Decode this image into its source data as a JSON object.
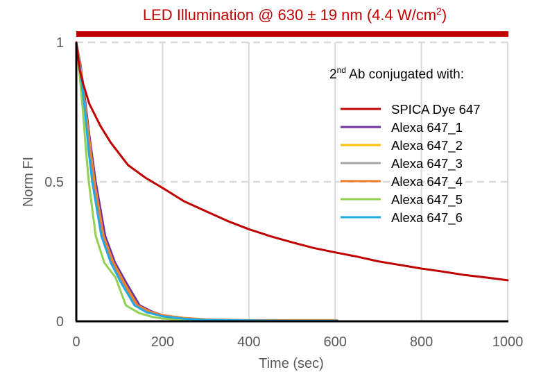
{
  "chart_data": {
    "type": "line",
    "title": "LED Illumination @ 630 ± 19 nm (4.4 W/cm²)",
    "title_parts": {
      "main": "LED Illumination @ 630 ± 19 nm (4.4 W/cm",
      "superscript": "2",
      "end": ")"
    },
    "illumination_bar": {
      "color": "#C00000",
      "x_range": [
        0,
        1000
      ]
    },
    "xlabel": "Time (sec)",
    "ylabel": "Norm FI",
    "xlim": [
      0,
      1000
    ],
    "ylim": [
      0,
      1
    ],
    "xticks": [
      0,
      200,
      400,
      600,
      800,
      1000
    ],
    "xtick_labels": [
      "0",
      "200",
      "400",
      "600",
      "800",
      "1000"
    ],
    "yticks": [
      0,
      0.5,
      1
    ],
    "ytick_labels": [
      "0",
      "0.5",
      "1"
    ],
    "grid": {
      "vertical": true,
      "horizontal_dashed": [
        0.5,
        1
      ]
    },
    "legend": {
      "title_main": "2",
      "title_sup": "nd",
      "title_rest": " Ab conjugated with:",
      "placement": "top-right"
    },
    "series": [
      {
        "name": "SPICA Dye 647",
        "color": "#C00000",
        "x": [
          0,
          8,
          16,
          30,
          56,
          80,
          120,
          160,
          200,
          250,
          300,
          350,
          400,
          450,
          500,
          550,
          600,
          650,
          700,
          750,
          800,
          850,
          900,
          950,
          1000
        ],
        "y": [
          1,
          0.9,
          0.85,
          0.78,
          0.7,
          0.64,
          0.56,
          0.515,
          0.478,
          0.43,
          0.395,
          0.36,
          0.33,
          0.305,
          0.283,
          0.263,
          0.247,
          0.232,
          0.215,
          0.202,
          0.189,
          0.178,
          0.166,
          0.157,
          0.147
        ]
      },
      {
        "name": "Alexa 647_1",
        "color": "#7030A0",
        "x": [
          0,
          10,
          20,
          30,
          45,
          67,
          90,
          117,
          147,
          175,
          200,
          250,
          300,
          400,
          500,
          605
        ],
        "y": [
          1,
          0.92,
          0.8,
          0.67,
          0.5,
          0.306,
          0.21,
          0.135,
          0.057,
          0.035,
          0.022,
          0.012,
          0.006,
          0.003,
          0.002,
          0.002
        ]
      },
      {
        "name": "Alexa 647_2",
        "color": "#FFC000",
        "x": [
          0,
          10,
          20,
          30,
          42,
          63,
          86,
          112,
          142,
          170,
          200,
          250,
          300,
          400,
          500,
          605
        ],
        "y": [
          1,
          0.91,
          0.78,
          0.65,
          0.5,
          0.306,
          0.21,
          0.135,
          0.057,
          0.035,
          0.022,
          0.012,
          0.007,
          0.004,
          0.003,
          0.003
        ]
      },
      {
        "name": "Alexa 647_3",
        "color": "#A5A5A5",
        "x": [
          0,
          10,
          20,
          30,
          41,
          62,
          85,
          110,
          140,
          168,
          200,
          250,
          300,
          400,
          500,
          605
        ],
        "y": [
          1,
          0.9,
          0.77,
          0.64,
          0.5,
          0.306,
          0.21,
          0.135,
          0.057,
          0.034,
          0.021,
          0.011,
          0.006,
          0.003,
          0.002,
          0.002
        ]
      },
      {
        "name": "Alexa 647_4",
        "color": "#ED7D31",
        "x": [
          0,
          10,
          20,
          30,
          41,
          62,
          85,
          111,
          141,
          169,
          200,
          250,
          300,
          400,
          500,
          605
        ],
        "y": [
          1,
          0.9,
          0.77,
          0.64,
          0.5,
          0.306,
          0.21,
          0.135,
          0.057,
          0.035,
          0.022,
          0.012,
          0.007,
          0.004,
          0.004,
          0.004
        ]
      },
      {
        "name": "Alexa 647_5",
        "color": "#92D050",
        "x": [
          0,
          8,
          16,
          22,
          29,
          45,
          65,
          91,
          115,
          145,
          175,
          200,
          250,
          300,
          400,
          500,
          605
        ],
        "y": [
          1,
          0.88,
          0.74,
          0.62,
          0.5,
          0.306,
          0.21,
          0.157,
          0.057,
          0.03,
          0.016,
          0.01,
          0.005,
          0.003,
          0.002,
          0.002,
          0.002
        ]
      },
      {
        "name": "Alexa 647_6",
        "color": "#1FA9E6",
        "x": [
          0,
          10,
          20,
          28,
          37,
          58,
          80,
          105,
          135,
          163,
          200,
          250,
          300,
          400,
          500,
          605
        ],
        "y": [
          1,
          0.89,
          0.76,
          0.62,
          0.5,
          0.306,
          0.21,
          0.135,
          0.057,
          0.032,
          0.018,
          0.009,
          0.005,
          0.003,
          0.002,
          0.002
        ]
      }
    ]
  }
}
